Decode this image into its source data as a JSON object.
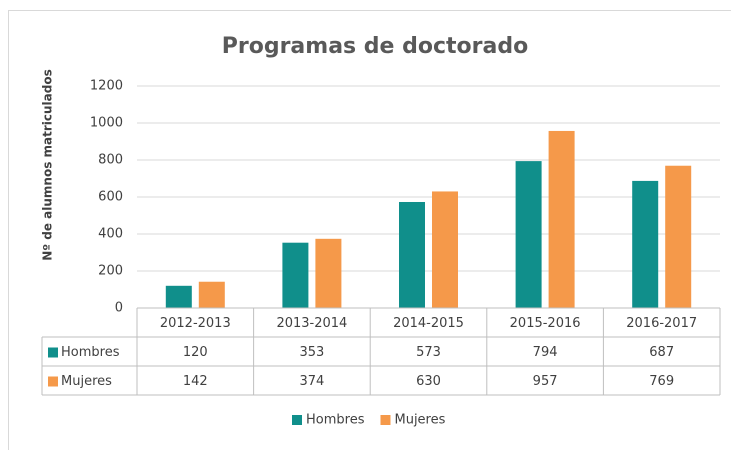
{
  "chart_data": {
    "type": "bar",
    "title": "Programas de doctorado",
    "y_label": "Nº de alumnos matriculados",
    "categories": [
      "2012-2013",
      "2013-2014",
      "2014-2015",
      "2015-2016",
      "2016-2017"
    ],
    "series": [
      {
        "name": "Hombres",
        "color": "#108f8b",
        "values": [
          120,
          353,
          573,
          794,
          687
        ]
      },
      {
        "name": "Mujeres",
        "color": "#f5994a",
        "values": [
          142,
          374,
          630,
          957,
          769
        ]
      }
    ],
    "ylim": [
      0,
      1200
    ],
    "yticks": [
      0,
      200,
      400,
      600,
      800,
      1000,
      1200
    ],
    "grid": true,
    "legend": "bottom",
    "data_table": true
  }
}
